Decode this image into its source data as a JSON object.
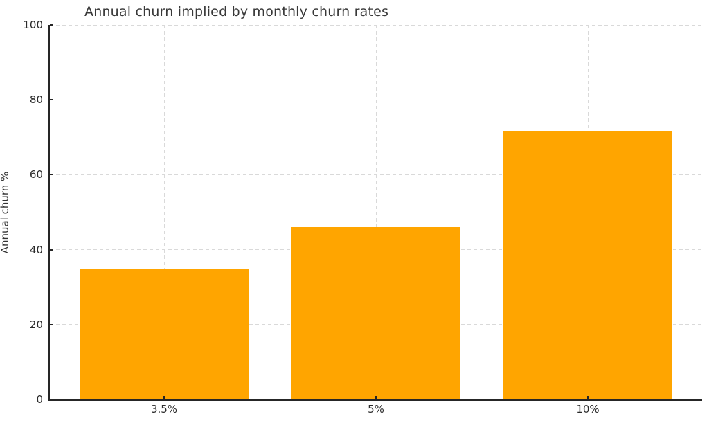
{
  "chart_data": {
    "type": "bar",
    "title": "Annual churn implied by monthly churn rates",
    "categories": [
      "3.5%",
      "5%",
      "10%"
    ],
    "values": [
      34.7,
      46.0,
      71.8
    ],
    "xlabel": "",
    "ylabel": "Annual churn %",
    "ylim": [
      0,
      100
    ],
    "yticks": [
      0,
      20,
      40,
      60,
      80,
      100
    ],
    "grid": {
      "visible": true,
      "style": "dashed",
      "axes": "both",
      "vertical_at": "category centers"
    },
    "legend": "none",
    "bar_color": "#FFA500"
  },
  "colors": {
    "bar": "#FFA500",
    "grid": "#d9d9d9",
    "spine": "#262626",
    "tick_text": "#2b2b2b",
    "title_text": "#383838",
    "background": "#ffffff"
  }
}
